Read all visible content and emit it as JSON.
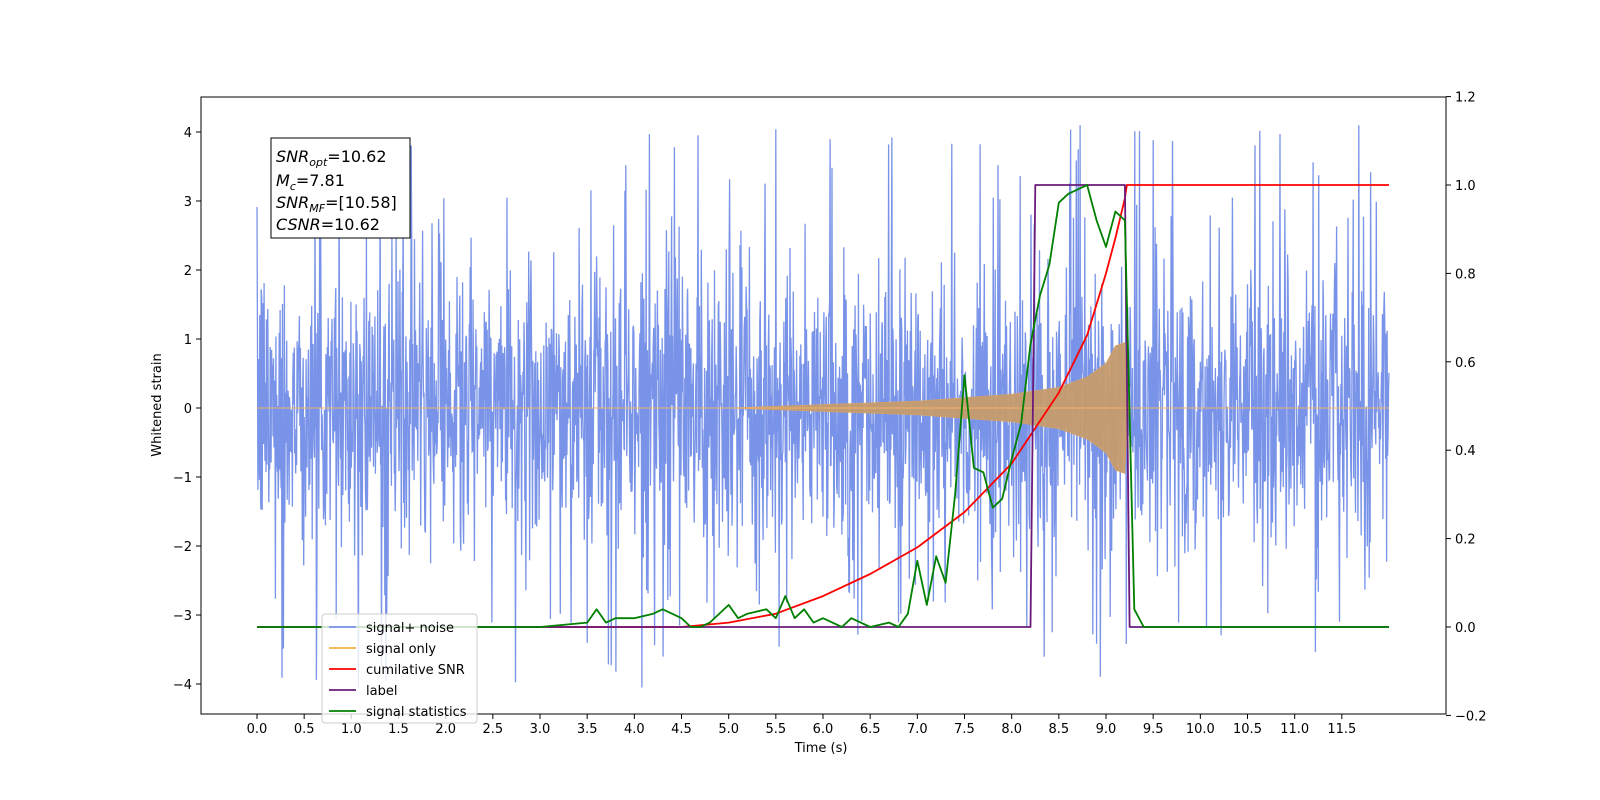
{
  "chart_data": {
    "type": "line",
    "xlabel": "Time (s)",
    "ylabel": "Whitened strain",
    "xlim": [
      -0.6,
      12.6
    ],
    "ylim": [
      -4.4,
      4.5
    ],
    "ylim_right": [
      -0.2,
      1.2
    ],
    "grid": false,
    "legend_position": "lower-left",
    "x_ticks": [
      "0.0",
      "0.5",
      "1.0",
      "1.5",
      "2.0",
      "2.5",
      "3.0",
      "3.5",
      "4.0",
      "4.5",
      "5.0",
      "5.5",
      "6.0",
      "6.5",
      "7.0",
      "7.5",
      "8.0",
      "8.5",
      "9.0",
      "9.5",
      "10.0",
      "10.5",
      "11.0",
      "11.5"
    ],
    "y_ticks": [
      4,
      3,
      2,
      1,
      0,
      -1,
      -2,
      -3,
      -4
    ],
    "y_ticks_right": [
      "1.2",
      "1.0",
      "0.8",
      "0.6",
      "0.4",
      "0.2",
      "0.0",
      "−0.2"
    ],
    "annotation": {
      "snr_opt_base": "SNR",
      "snr_opt_sub": "opt",
      "snr_opt_val": "=10.62",
      "mc_base": "M",
      "mc_sub": "c",
      "mc_val": "=7.81",
      "snr_mf_base": "SNR",
      "snr_mf_sub": "MF",
      "snr_mf_val": "=[10.58]",
      "csnr_base": "CSNR",
      "csnr_val": "=10.62"
    },
    "series": [
      {
        "name": "signal+ noise",
        "color": "#7893e8",
        "axis": "left",
        "x_range": [
          0,
          12
        ],
        "envelope_abs": 2.2,
        "spike_max": 4.1
      },
      {
        "name": "signal only",
        "color": "#f5b041",
        "axis": "left",
        "envelope": {
          "x": [
            0,
            5.0,
            6.0,
            7.0,
            7.5,
            8.0,
            8.5,
            8.8,
            9.0,
            9.1,
            9.2,
            9.23,
            12
          ],
          "amp": [
            0.0,
            0.0,
            0.05,
            0.1,
            0.15,
            0.2,
            0.3,
            0.45,
            0.65,
            0.9,
            0.95,
            0.0,
            0.0
          ]
        }
      },
      {
        "name": "cumilative SNR",
        "color": "#ff0000",
        "axis": "right",
        "x": [
          0,
          4.5,
          5.0,
          5.5,
          6.0,
          6.5,
          7.0,
          7.5,
          8.0,
          8.5,
          8.8,
          9.0,
          9.1,
          9.2,
          9.22,
          12
        ],
        "y": [
          0.0,
          0.0,
          0.01,
          0.03,
          0.07,
          0.12,
          0.18,
          0.26,
          0.37,
          0.53,
          0.66,
          0.8,
          0.88,
          0.97,
          1.0,
          1.0
        ]
      },
      {
        "name": "label",
        "color": "#6a1b7a",
        "axis": "right",
        "x": [
          0,
          8.2,
          8.25,
          9.2,
          9.25,
          12
        ],
        "y": [
          0.0,
          0.0,
          1.0,
          1.0,
          0.0,
          0.0
        ]
      },
      {
        "name": "signal statistics",
        "color": "#008000",
        "axis": "right",
        "x": [
          0,
          3.0,
          3.5,
          3.6,
          3.7,
          3.8,
          3.9,
          4.0,
          4.2,
          4.3,
          4.4,
          4.5,
          4.6,
          4.7,
          4.8,
          5.0,
          5.1,
          5.2,
          5.4,
          5.5,
          5.6,
          5.7,
          5.8,
          5.9,
          6.0,
          6.1,
          6.2,
          6.3,
          6.5,
          6.7,
          6.8,
          6.9,
          7.0,
          7.1,
          7.2,
          7.3,
          7.4,
          7.5,
          7.6,
          7.7,
          7.8,
          7.9,
          8.0,
          8.1,
          8.2,
          8.3,
          8.4,
          8.5,
          8.6,
          8.7,
          8.8,
          8.9,
          9.0,
          9.1,
          9.2,
          9.3,
          9.4,
          9.5,
          12
        ],
        "y": [
          0.0,
          0.0,
          0.01,
          0.04,
          0.01,
          0.02,
          0.02,
          0.02,
          0.03,
          0.04,
          0.03,
          0.02,
          0.0,
          0.0,
          0.01,
          0.05,
          0.02,
          0.03,
          0.04,
          0.02,
          0.07,
          0.02,
          0.04,
          0.01,
          0.02,
          0.01,
          0.0,
          0.02,
          0.0,
          0.01,
          0.0,
          0.03,
          0.15,
          0.05,
          0.16,
          0.1,
          0.3,
          0.57,
          0.36,
          0.35,
          0.27,
          0.29,
          0.38,
          0.46,
          0.64,
          0.75,
          0.82,
          0.96,
          0.98,
          0.99,
          1.0,
          0.92,
          0.86,
          0.94,
          0.92,
          0.04,
          0.0,
          0.0,
          0.0
        ]
      }
    ]
  }
}
